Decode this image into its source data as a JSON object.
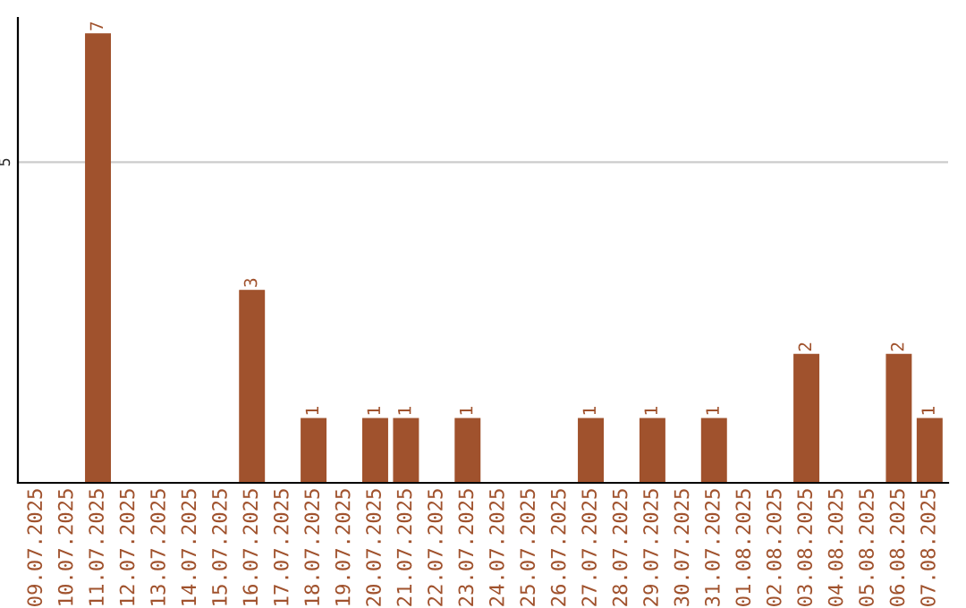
{
  "chart_data": {
    "type": "bar",
    "categories": [
      "09.07.2025",
      "10.07.2025",
      "11.07.2025",
      "12.07.2025",
      "13.07.2025",
      "14.07.2025",
      "15.07.2025",
      "16.07.2025",
      "17.07.2025",
      "18.07.2025",
      "19.07.2025",
      "20.07.2025",
      "21.07.2025",
      "22.07.2025",
      "23.07.2025",
      "24.07.2025",
      "25.07.2025",
      "26.07.2025",
      "27.07.2025",
      "28.07.2025",
      "29.07.2025",
      "30.07.2025",
      "31.07.2025",
      "01.08.2025",
      "02.08.2025",
      "03.08.2025",
      "04.08.2025",
      "05.08.2025",
      "06.08.2025",
      "07.08.2025"
    ],
    "values": [
      0,
      0,
      7,
      0,
      0,
      0,
      0,
      3,
      0,
      1,
      0,
      1,
      1,
      0,
      1,
      0,
      0,
      0,
      1,
      0,
      1,
      0,
      1,
      0,
      0,
      2,
      0,
      0,
      2,
      1
    ],
    "value_labels": [
      null,
      null,
      "7",
      null,
      null,
      null,
      null,
      "3",
      null,
      "1",
      null,
      "1",
      "1",
      null,
      "1",
      null,
      null,
      null,
      "1",
      null,
      "1",
      null,
      "1",
      null,
      null,
      "2",
      null,
      null,
      "2",
      "1"
    ],
    "color": "#a0522d",
    "ylim": [
      0,
      7.25
    ],
    "yticks": [
      5
    ],
    "grid": "y",
    "legend": false
  }
}
